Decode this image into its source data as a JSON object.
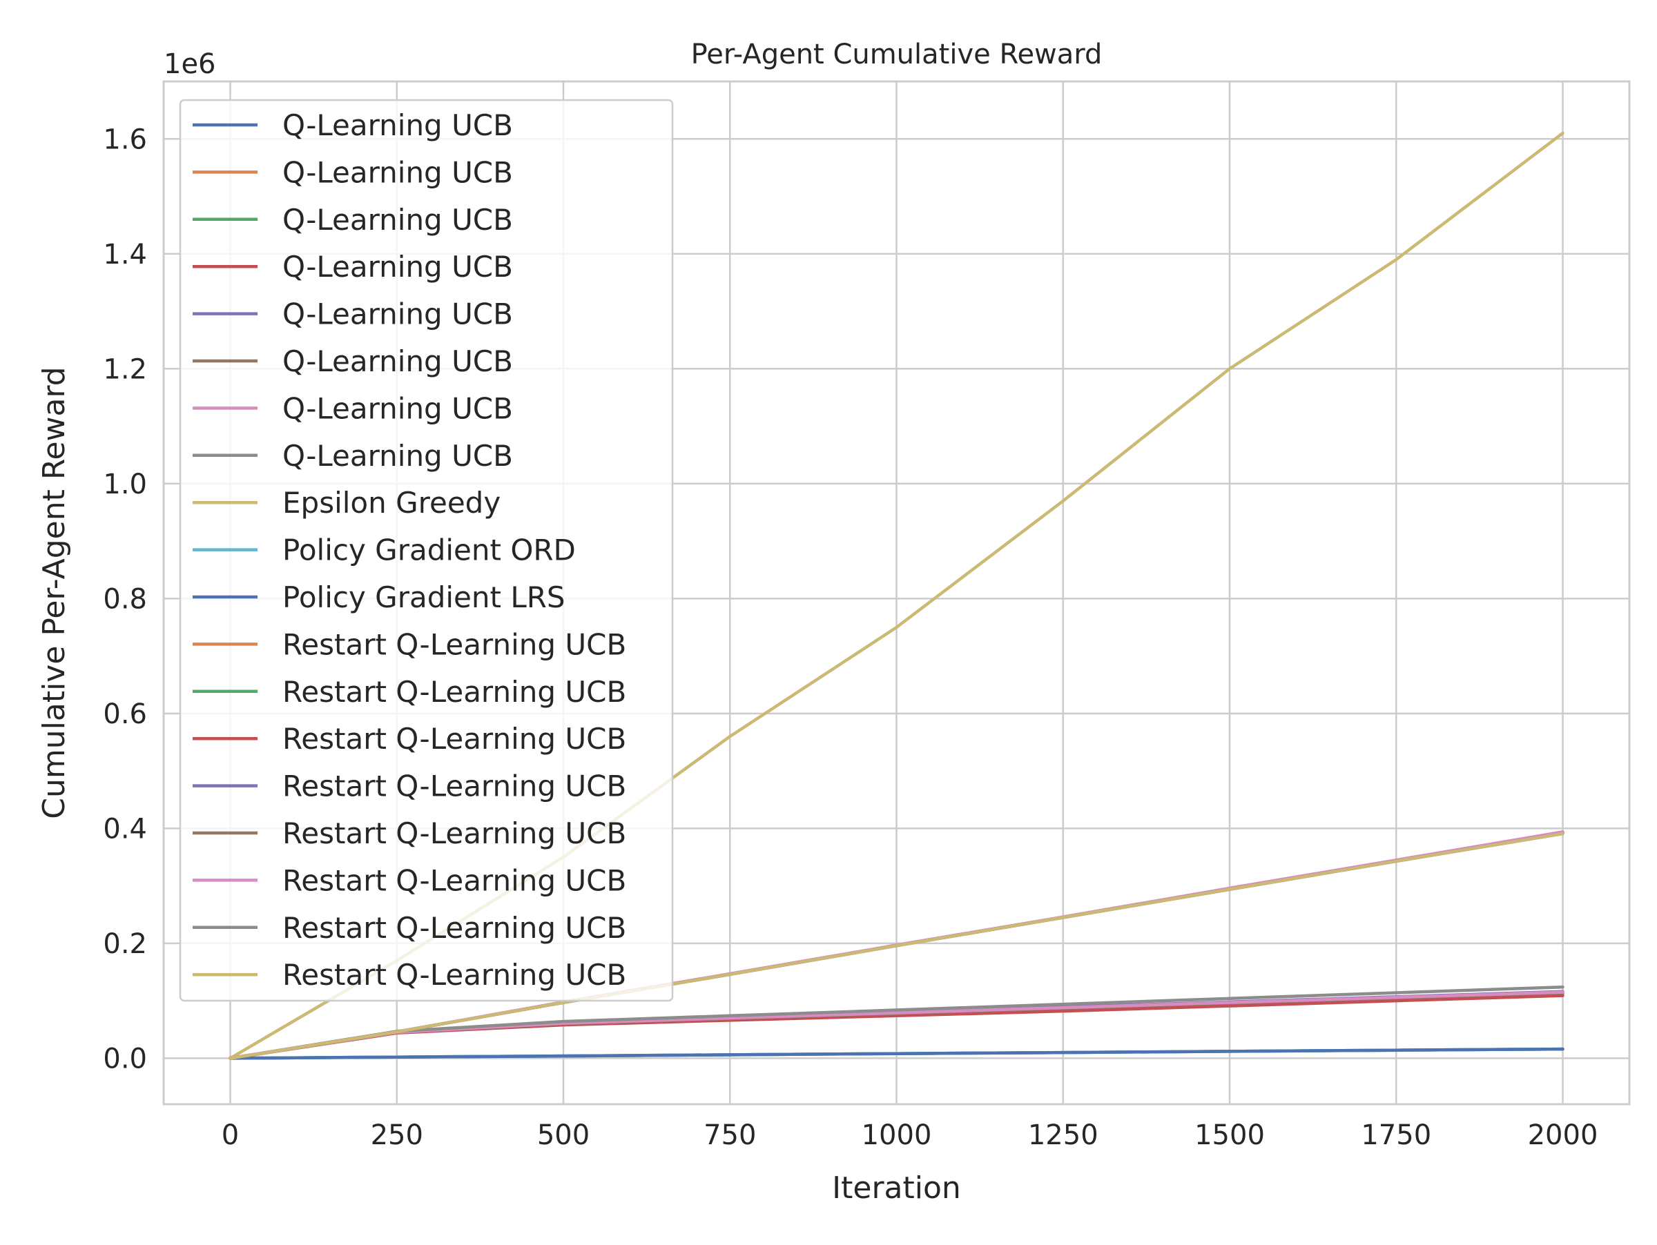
{
  "chart_data": {
    "type": "line",
    "title": "Per-Agent Cumulative Reward",
    "xlabel": "Iteration",
    "ylabel": "Cumulative Per-Agent Reward",
    "y_offset_label": "1e6",
    "xlim": [
      -100,
      2100
    ],
    "ylim": [
      -0.08,
      1.7
    ],
    "x_ticks": [
      0,
      250,
      500,
      750,
      1000,
      1250,
      1500,
      1750,
      2000
    ],
    "x_tick_labels": [
      "0",
      "250",
      "500",
      "750",
      "1000",
      "1250",
      "1500",
      "1750",
      "2000"
    ],
    "y_ticks": [
      0.0,
      0.2,
      0.4,
      0.6,
      0.8,
      1.0,
      1.2,
      1.4,
      1.6
    ],
    "y_tick_labels": [
      "0.0",
      "0.2",
      "0.4",
      "0.6",
      "0.8",
      "1.0",
      "1.2",
      "1.4",
      "1.6"
    ],
    "grid": true,
    "legend_position": "upper-left",
    "x": [
      0,
      250,
      500,
      750,
      1000,
      1250,
      1500,
      1750,
      2000
    ],
    "series": [
      {
        "name": "Q-Learning UCB",
        "color": "#4c72b0",
        "values": [
          0,
          0.002,
          0.004,
          0.006,
          0.008,
          0.01,
          0.012,
          0.014,
          0.016
        ]
      },
      {
        "name": "Q-Learning UCB",
        "color": "#dd8452",
        "values": [
          0,
          0.045,
          0.06,
          0.068,
          0.077,
          0.085,
          0.094,
          0.103,
          0.112
        ]
      },
      {
        "name": "Q-Learning UCB",
        "color": "#55a868",
        "values": [
          0,
          0.045,
          0.061,
          0.07,
          0.079,
          0.088,
          0.097,
          0.106,
          0.115
        ]
      },
      {
        "name": "Q-Learning UCB",
        "color": "#c44e52",
        "values": [
          0,
          0.044,
          0.058,
          0.066,
          0.074,
          0.082,
          0.091,
          0.1,
          0.109
        ]
      },
      {
        "name": "Q-Learning UCB",
        "color": "#8172b3",
        "values": [
          0,
          0.046,
          0.062,
          0.071,
          0.08,
          0.089,
          0.098,
          0.107,
          0.116
        ]
      },
      {
        "name": "Q-Learning UCB",
        "color": "#937860",
        "values": [
          0,
          0.045,
          0.06,
          0.069,
          0.078,
          0.087,
          0.096,
          0.105,
          0.114
        ]
      },
      {
        "name": "Q-Learning UCB",
        "color": "#da8bc3",
        "values": [
          0,
          0.045,
          0.061,
          0.07,
          0.079,
          0.088,
          0.097,
          0.106,
          0.115
        ]
      },
      {
        "name": "Q-Learning UCB",
        "color": "#8c8c8c",
        "values": [
          0,
          0.047,
          0.064,
          0.074,
          0.084,
          0.094,
          0.104,
          0.114,
          0.124
        ]
      },
      {
        "name": "Epsilon Greedy",
        "color": "#ccb974",
        "values": [
          0,
          0.17,
          0.35,
          0.56,
          0.75,
          0.97,
          1.2,
          1.39,
          1.61
        ]
      },
      {
        "name": "Policy Gradient ORD",
        "color": "#64b5cd",
        "values": [
          0,
          0.002,
          0.004,
          0.006,
          0.008,
          0.01,
          0.012,
          0.014,
          0.016
        ]
      },
      {
        "name": "Policy Gradient LRS",
        "color": "#4c72b0",
        "values": [
          0,
          0.002,
          0.004,
          0.006,
          0.008,
          0.01,
          0.012,
          0.014,
          0.016
        ]
      },
      {
        "name": "Restart Q-Learning UCB",
        "color": "#dd8452",
        "values": [
          0,
          0.046,
          0.097,
          0.146,
          0.196,
          0.245,
          0.294,
          0.343,
          0.392
        ]
      },
      {
        "name": "Restart Q-Learning UCB",
        "color": "#55a868",
        "values": [
          0,
          0.046,
          0.097,
          0.146,
          0.196,
          0.245,
          0.294,
          0.343,
          0.392
        ]
      },
      {
        "name": "Restart Q-Learning UCB",
        "color": "#c44e52",
        "values": [
          0,
          0.046,
          0.097,
          0.146,
          0.196,
          0.245,
          0.294,
          0.343,
          0.392
        ]
      },
      {
        "name": "Restart Q-Learning UCB",
        "color": "#8172b3",
        "values": [
          0,
          0.046,
          0.097,
          0.146,
          0.196,
          0.245,
          0.294,
          0.343,
          0.393
        ]
      },
      {
        "name": "Restart Q-Learning UCB",
        "color": "#937860",
        "values": [
          0,
          0.046,
          0.097,
          0.146,
          0.196,
          0.245,
          0.294,
          0.343,
          0.391
        ]
      },
      {
        "name": "Restart Q-Learning UCB",
        "color": "#da8bc3",
        "values": [
          0,
          0.046,
          0.098,
          0.147,
          0.197,
          0.246,
          0.296,
          0.345,
          0.394
        ]
      },
      {
        "name": "Restart Q-Learning UCB",
        "color": "#8c8c8c",
        "values": [
          0,
          0.046,
          0.097,
          0.146,
          0.196,
          0.245,
          0.294,
          0.343,
          0.391
        ]
      },
      {
        "name": "Restart Q-Learning UCB",
        "color": "#ccb974",
        "values": [
          0,
          0.046,
          0.097,
          0.146,
          0.196,
          0.245,
          0.294,
          0.343,
          0.391
        ]
      }
    ]
  }
}
